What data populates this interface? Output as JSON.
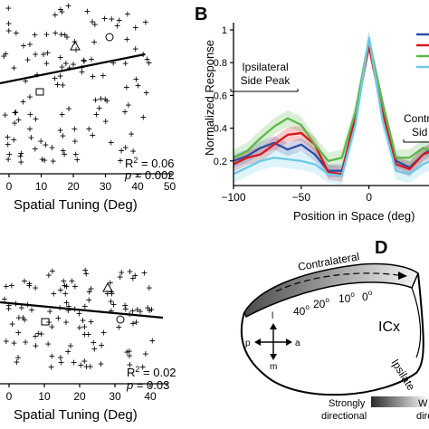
{
  "panel_a": {
    "xlabel": "Spatial Tuning (Deg)",
    "xticks": [
      "0",
      "10",
      "20",
      "30",
      "40",
      "50"
    ],
    "r2_label": "R",
    "r2_sup": "2",
    "r2_value": " = 0.06",
    "p_label": "p",
    "p_value": " = 0.002"
  },
  "panel_b": {
    "letter": "B",
    "ylabel": "Normalized Response",
    "xlabel": "Position in Space (deg)",
    "yticks": [
      "0.2",
      "0.4",
      "0.6",
      "0.8",
      "1"
    ],
    "xticks": [
      "−100",
      "−50",
      "0",
      "50"
    ],
    "ipsi_line1": "Ipsilateral",
    "ipsi_line2": "Side Peak",
    "contra_line1": "Contr",
    "contra_line2": "Sid",
    "series_colors": [
      "#2e4fa3",
      "#d7191c",
      "#5cb84a",
      "#6ec9e8"
    ]
  },
  "panel_c": {
    "xlabel": "Spatial Tuning (Deg)",
    "xticks": [
      "0",
      "10",
      "20",
      "30",
      "40"
    ],
    "r2_label": "R",
    "r2_sup": "2",
    "r2_value": " = 0.02",
    "p_label": "p",
    "p_value": " = 0.03"
  },
  "panel_d": {
    "letter": "D",
    "contralateral": "Contralateral",
    "icx": "ICx",
    "ipsilateral": "Ipsilate",
    "angles": [
      "40",
      "20",
      "10",
      "0"
    ],
    "degree_symbol": "o",
    "compass": [
      "l",
      "p",
      "a",
      "m"
    ],
    "legend_left_1": "Strongly",
    "legend_left_2": "directional",
    "legend_right_1": "W",
    "legend_right_2": "dire"
  },
  "chart_data": [
    {
      "type": "scatter",
      "panel": "A (top-left)",
      "xlabel": "Spatial Tuning (Deg)",
      "xlim": [
        -5,
        50
      ],
      "fit_line": {
        "x": [
          -5,
          45
        ],
        "y": [
          0.32,
          0.58
        ]
      },
      "annotations": [
        "R2 = 0.06",
        "p = 0.002"
      ],
      "markers": {
        "triangle_x": 19,
        "circle_x": 30,
        "square_x": 8
      }
    },
    {
      "type": "line",
      "panel": "B",
      "xlabel": "Position in Space (deg)",
      "ylabel": "Normalized Response",
      "xlim": [
        -100,
        55
      ],
      "ylim": [
        0.05,
        1.0
      ],
      "x": [
        -100,
        -90,
        -80,
        -70,
        -60,
        -50,
        -40,
        -30,
        -20,
        -10,
        0,
        10,
        20,
        30,
        40,
        50
      ],
      "series": [
        {
          "color": "#2e4fa3",
          "values": [
            0.2,
            0.23,
            0.28,
            0.31,
            0.27,
            0.3,
            0.24,
            0.14,
            0.14,
            0.45,
            0.92,
            0.55,
            0.2,
            0.16,
            0.24,
            0.3
          ]
        },
        {
          "color": "#d7191c",
          "values": [
            0.18,
            0.22,
            0.24,
            0.3,
            0.36,
            0.37,
            0.3,
            0.13,
            0.12,
            0.48,
            0.9,
            0.5,
            0.18,
            0.15,
            0.24,
            0.27
          ]
        },
        {
          "color": "#5cb84a",
          "values": [
            0.22,
            0.26,
            0.34,
            0.41,
            0.46,
            0.42,
            0.3,
            0.2,
            0.22,
            0.5,
            0.94,
            0.55,
            0.22,
            0.22,
            0.28,
            0.25
          ]
        },
        {
          "color": "#6ec9e8",
          "values": [
            0.12,
            0.16,
            0.2,
            0.22,
            0.21,
            0.2,
            0.18,
            0.12,
            0.11,
            0.42,
            0.95,
            0.45,
            0.14,
            0.12,
            0.18,
            0.22
          ]
        }
      ]
    },
    {
      "type": "scatter",
      "panel": "C (bottom-left)",
      "xlabel": "Spatial Tuning (Deg)",
      "xlim": [
        -3,
        42
      ],
      "fit_line": {
        "x": [
          -3,
          40
        ],
        "y": [
          0.46,
          0.36
        ]
      },
      "annotations": [
        "R2 = 0.02",
        "p = 0.03"
      ],
      "markers": {
        "triangle_x": 19,
        "circle_x": 30,
        "square_x": 8
      }
    }
  ]
}
